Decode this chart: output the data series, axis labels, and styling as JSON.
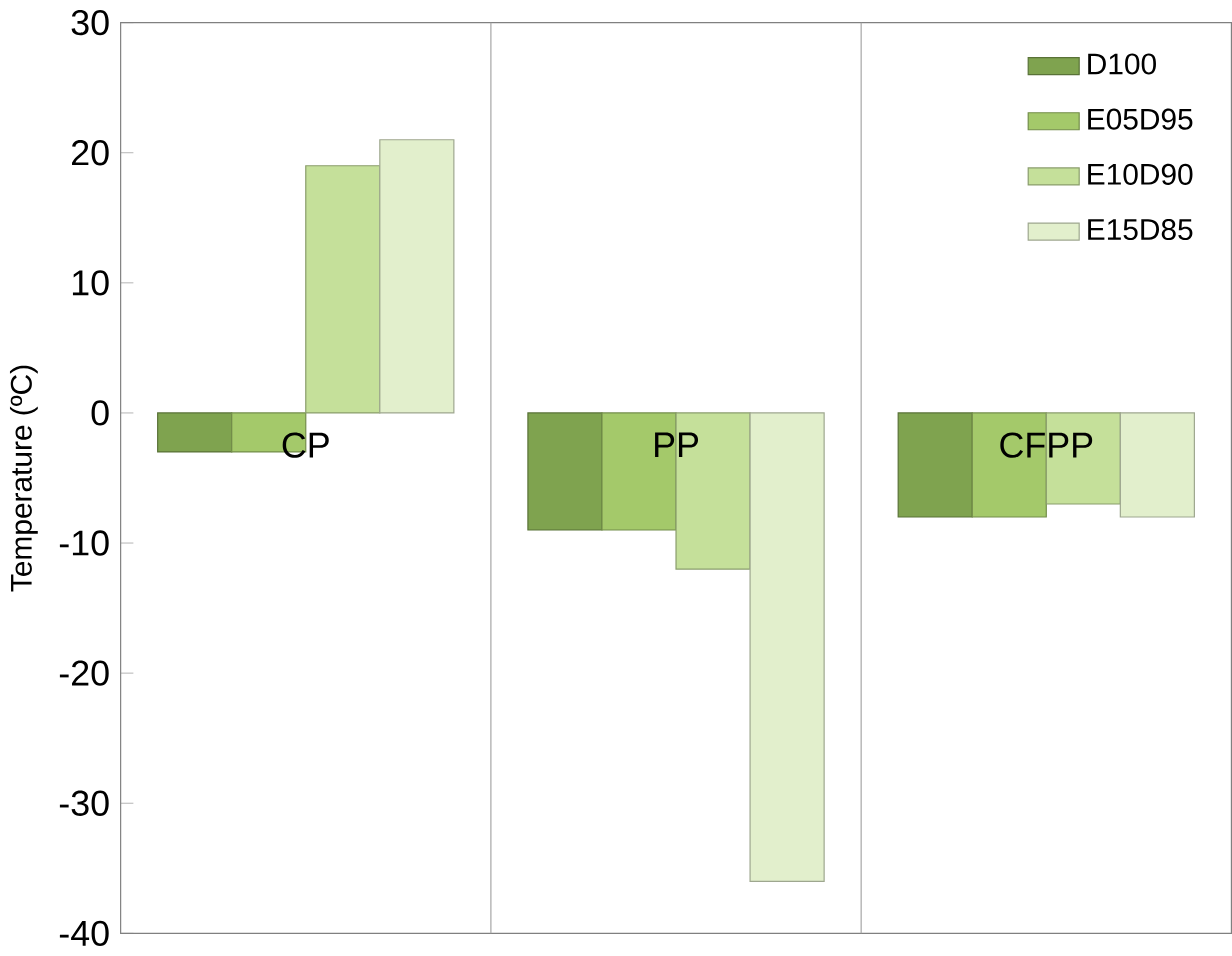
{
  "chart_data": {
    "type": "bar",
    "ylabel": "Temperature (ºC)",
    "categories": [
      "CP",
      "PP",
      "CFPP"
    ],
    "series": [
      {
        "name": "D100",
        "color": "#7fa34f",
        "values": [
          -3,
          -9,
          -8
        ]
      },
      {
        "name": "E05D95",
        "color": "#a4c96a",
        "values": [
          -3,
          -9,
          -8
        ]
      },
      {
        "name": "E10D90",
        "color": "#c5e09a",
        "values": [
          19,
          -12,
          -7
        ]
      },
      {
        "name": "E15D85",
        "color": "#e2efcc",
        "values": [
          21,
          -36,
          -8
        ]
      }
    ],
    "ylim": [
      -40,
      30
    ],
    "yticks": [
      -40,
      -30,
      -20,
      -10,
      0,
      10,
      20,
      30
    ],
    "grid": "x",
    "legend": "top right"
  }
}
